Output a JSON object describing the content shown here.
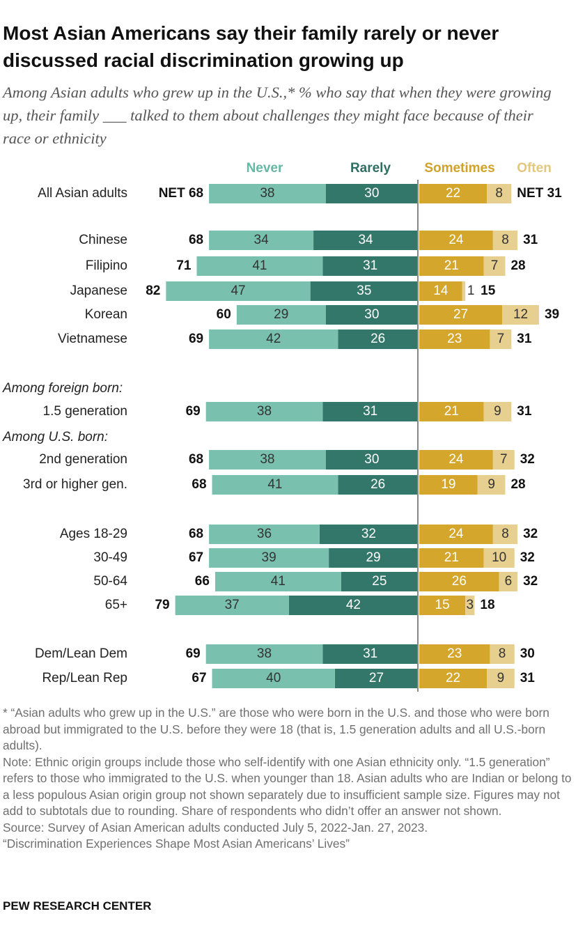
{
  "chart_data": {
    "type": "diverging_bar",
    "title": "Most Asian Americans say their family rarely or never discussed racial discrimination growing up",
    "subtitle": "Among Asian adults who grew up in the U.S.,* % who say that when they were growing up, their family ___ talked to them about challenges they might face because of their race or ethnicity",
    "categories": [
      "All Asian adults",
      "Chinese",
      "Filipino",
      "Japanese",
      "Korean",
      "Vietnamese",
      "1.5 generation",
      "2nd generation",
      "3rd or higher gen.",
      "Ages 18-29",
      "30-49",
      "50-64",
      "65+",
      "Dem/Lean Dem",
      "Rep/Lean Rep"
    ],
    "annotations": [
      "Among foreign born:",
      "Among U.S. born:"
    ],
    "series": [
      {
        "name": "Never",
        "color": "#79c1ae",
        "legend_color": "#66b7a3",
        "label_color": "#333333",
        "values": [
          38,
          34,
          41,
          47,
          29,
          42,
          38,
          38,
          41,
          36,
          39,
          41,
          37,
          38,
          40
        ]
      },
      {
        "name": "Rarely",
        "color": "#33776a",
        "legend_color": "#2f6e62",
        "label_color": "#ffffff",
        "values": [
          30,
          34,
          31,
          35,
          30,
          26,
          31,
          30,
          26,
          32,
          29,
          25,
          42,
          31,
          27
        ]
      },
      {
        "name": "Sometimes",
        "color": "#d4a62c",
        "legend_color": "#d1a22a",
        "label_color": "#ffffff",
        "values": [
          22,
          24,
          21,
          14,
          27,
          23,
          21,
          24,
          19,
          24,
          21,
          26,
          15,
          23,
          22
        ]
      },
      {
        "name": "Often",
        "color": "#e7d08f",
        "legend_color": "#e3c77f",
        "label_color": "#333333",
        "values": [
          8,
          8,
          7,
          1,
          12,
          7,
          9,
          7,
          9,
          8,
          10,
          6,
          3,
          8,
          9
        ]
      }
    ],
    "net_left": {
      "values": [
        68,
        68,
        71,
        82,
        60,
        69,
        69,
        68,
        68,
        68,
        67,
        66,
        79,
        69,
        67
      ],
      "value_labels": [
        "NET 68",
        "68",
        "71",
        "82",
        "60",
        "69",
        "69",
        "68",
        "68",
        "68",
        "67",
        "66",
        "79",
        "69",
        "67"
      ]
    },
    "net_right": {
      "values": [
        31,
        31,
        28,
        15,
        39,
        31,
        31,
        32,
        28,
        32,
        32,
        32,
        18,
        30,
        31
      ],
      "value_labels": [
        "NET 31",
        "31",
        "28",
        "15",
        "39",
        "31",
        "31",
        "32",
        "28",
        "32",
        "32",
        "32",
        "18",
        "30",
        "31"
      ]
    }
  },
  "footer": {
    "notes": [
      "* “Asian adults who grew up in the U.S.” are those who were born in the U.S. and those who were born abroad but immigrated to the U.S. before they were 18 (that is, 1.5 generation adults and all U.S.-born adults).",
      "Note: Ethnic origin groups include those who self-identify with one Asian ethnicity only. “1.5 generation” refers to those who immigrated to the U.S. when younger than 18. Asian adults who are Indian or belong to a less populous Asian origin group not shown separately due to insufficient sample size. Figures may not add to subtotals due to rounding. Share of respondents who didn’t offer an answer not shown.",
      "Source: Survey of Asian American adults conducted July 5, 2022-Jan. 27, 2023.",
      "“Discrimination Experiences Shape Most Asian Americans’ Lives”"
    ],
    "credit": "PEW RESEARCH CENTER"
  }
}
